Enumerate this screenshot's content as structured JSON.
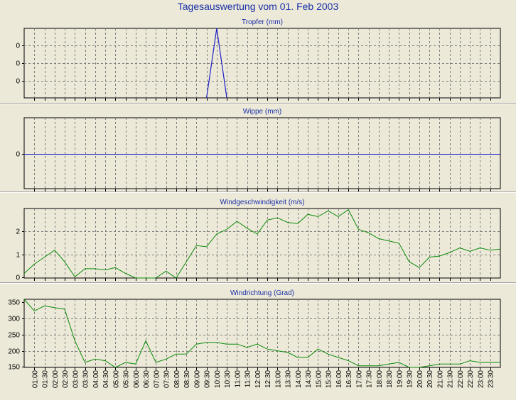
{
  "title": "Tagesauswertung vom 01. Feb 2003",
  "colors": {
    "title": "#1a2fa8",
    "blue_series": "#1e1ec8",
    "green_series": "#0a8a0a",
    "grid": "#7d7d7d",
    "background": "#ece9d8"
  },
  "x_tick_labels": [
    "01:00",
    "01:30",
    "02:00",
    "02:30",
    "03:00",
    "03:30",
    "04:00",
    "04:30",
    "05:00",
    "05:30",
    "06:00",
    "06:30",
    "07:00",
    "07:30",
    "08:00",
    "08:30",
    "09:00",
    "09:30",
    "10:00",
    "10:30",
    "11:00",
    "11:30",
    "12:00",
    "12:30",
    "13:00",
    "13:30",
    "14:00",
    "14:30",
    "15:00",
    "15:30",
    "16:00",
    "16:30",
    "17:00",
    "17:30",
    "18:00",
    "18:30",
    "19:00",
    "19:30",
    "20:00",
    "20:30",
    "21:00",
    "21:30",
    "22:00",
    "22:30",
    "23:00",
    "23:30"
  ],
  "chart_data": [
    {
      "type": "line",
      "title": "Tropfer (mm)",
      "y_tick_labels": [
        "0",
        "0",
        "0"
      ],
      "ylim": [
        0,
        1
      ],
      "grid": true,
      "series": [
        {
          "values": [
            0,
            0,
            0,
            0,
            0,
            0,
            0,
            0,
            0,
            0,
            0,
            0,
            0,
            0,
            0,
            0,
            0,
            0,
            0,
            1,
            0,
            0,
            0,
            0,
            0,
            0,
            0,
            0,
            0,
            0,
            0,
            0,
            0,
            0,
            0,
            0,
            0,
            0,
            0,
            0,
            0,
            0,
            0,
            0,
            0,
            0,
            0,
            0
          ]
        }
      ]
    },
    {
      "type": "line",
      "title": "Wippe (mm)",
      "y_tick_labels": [
        "0"
      ],
      "ylim": [
        -1,
        1
      ],
      "grid": true,
      "series": [
        {
          "values": [
            0,
            0,
            0,
            0,
            0,
            0,
            0,
            0,
            0,
            0,
            0,
            0,
            0,
            0,
            0,
            0,
            0,
            0,
            0,
            0,
            0,
            0,
            0,
            0,
            0,
            0,
            0,
            0,
            0,
            0,
            0,
            0,
            0,
            0,
            0,
            0,
            0,
            0,
            0,
            0,
            0,
            0,
            0,
            0,
            0,
            0,
            0,
            0
          ]
        }
      ]
    },
    {
      "type": "line",
      "title": "Windgeschwindigkeit (m/s)",
      "y_tick_labels": [
        "0",
        "1",
        "2"
      ],
      "ylim": [
        0,
        3
      ],
      "grid": true,
      "series": [
        {
          "values": [
            0.2,
            0.6,
            0.9,
            1.2,
            0.7,
            0.05,
            0.4,
            0.4,
            0.35,
            0.45,
            0.2,
            0,
            0,
            0,
            0.3,
            0,
            0.7,
            1.4,
            1.35,
            1.9,
            2.1,
            2.45,
            2.15,
            1.9,
            2.5,
            2.6,
            2.4,
            2.35,
            2.75,
            2.65,
            2.9,
            2.65,
            2.95,
            2.1,
            1.95,
            1.7,
            1.6,
            1.5,
            0.7,
            0.45,
            0.9,
            0.95,
            1.1,
            1.3,
            1.15,
            1.3,
            1.2,
            1.25
          ]
        }
      ]
    },
    {
      "type": "line",
      "title": "Windrichtung (Grad)",
      "y_tick_labels": [
        "150",
        "200",
        "250",
        "300",
        "350"
      ],
      "ylim": [
        150,
        355
      ],
      "grid": true,
      "series": [
        {
          "values": [
            355,
            320,
            335,
            330,
            325,
            230,
            165,
            175,
            170,
            150,
            165,
            160,
            230,
            165,
            175,
            190,
            190,
            220,
            225,
            225,
            220,
            220,
            210,
            220,
            205,
            200,
            195,
            180,
            180,
            205,
            190,
            180,
            170,
            155,
            155,
            155,
            160,
            165,
            150,
            150,
            155,
            160,
            160,
            160,
            170,
            165,
            165,
            165
          ]
        }
      ]
    }
  ]
}
